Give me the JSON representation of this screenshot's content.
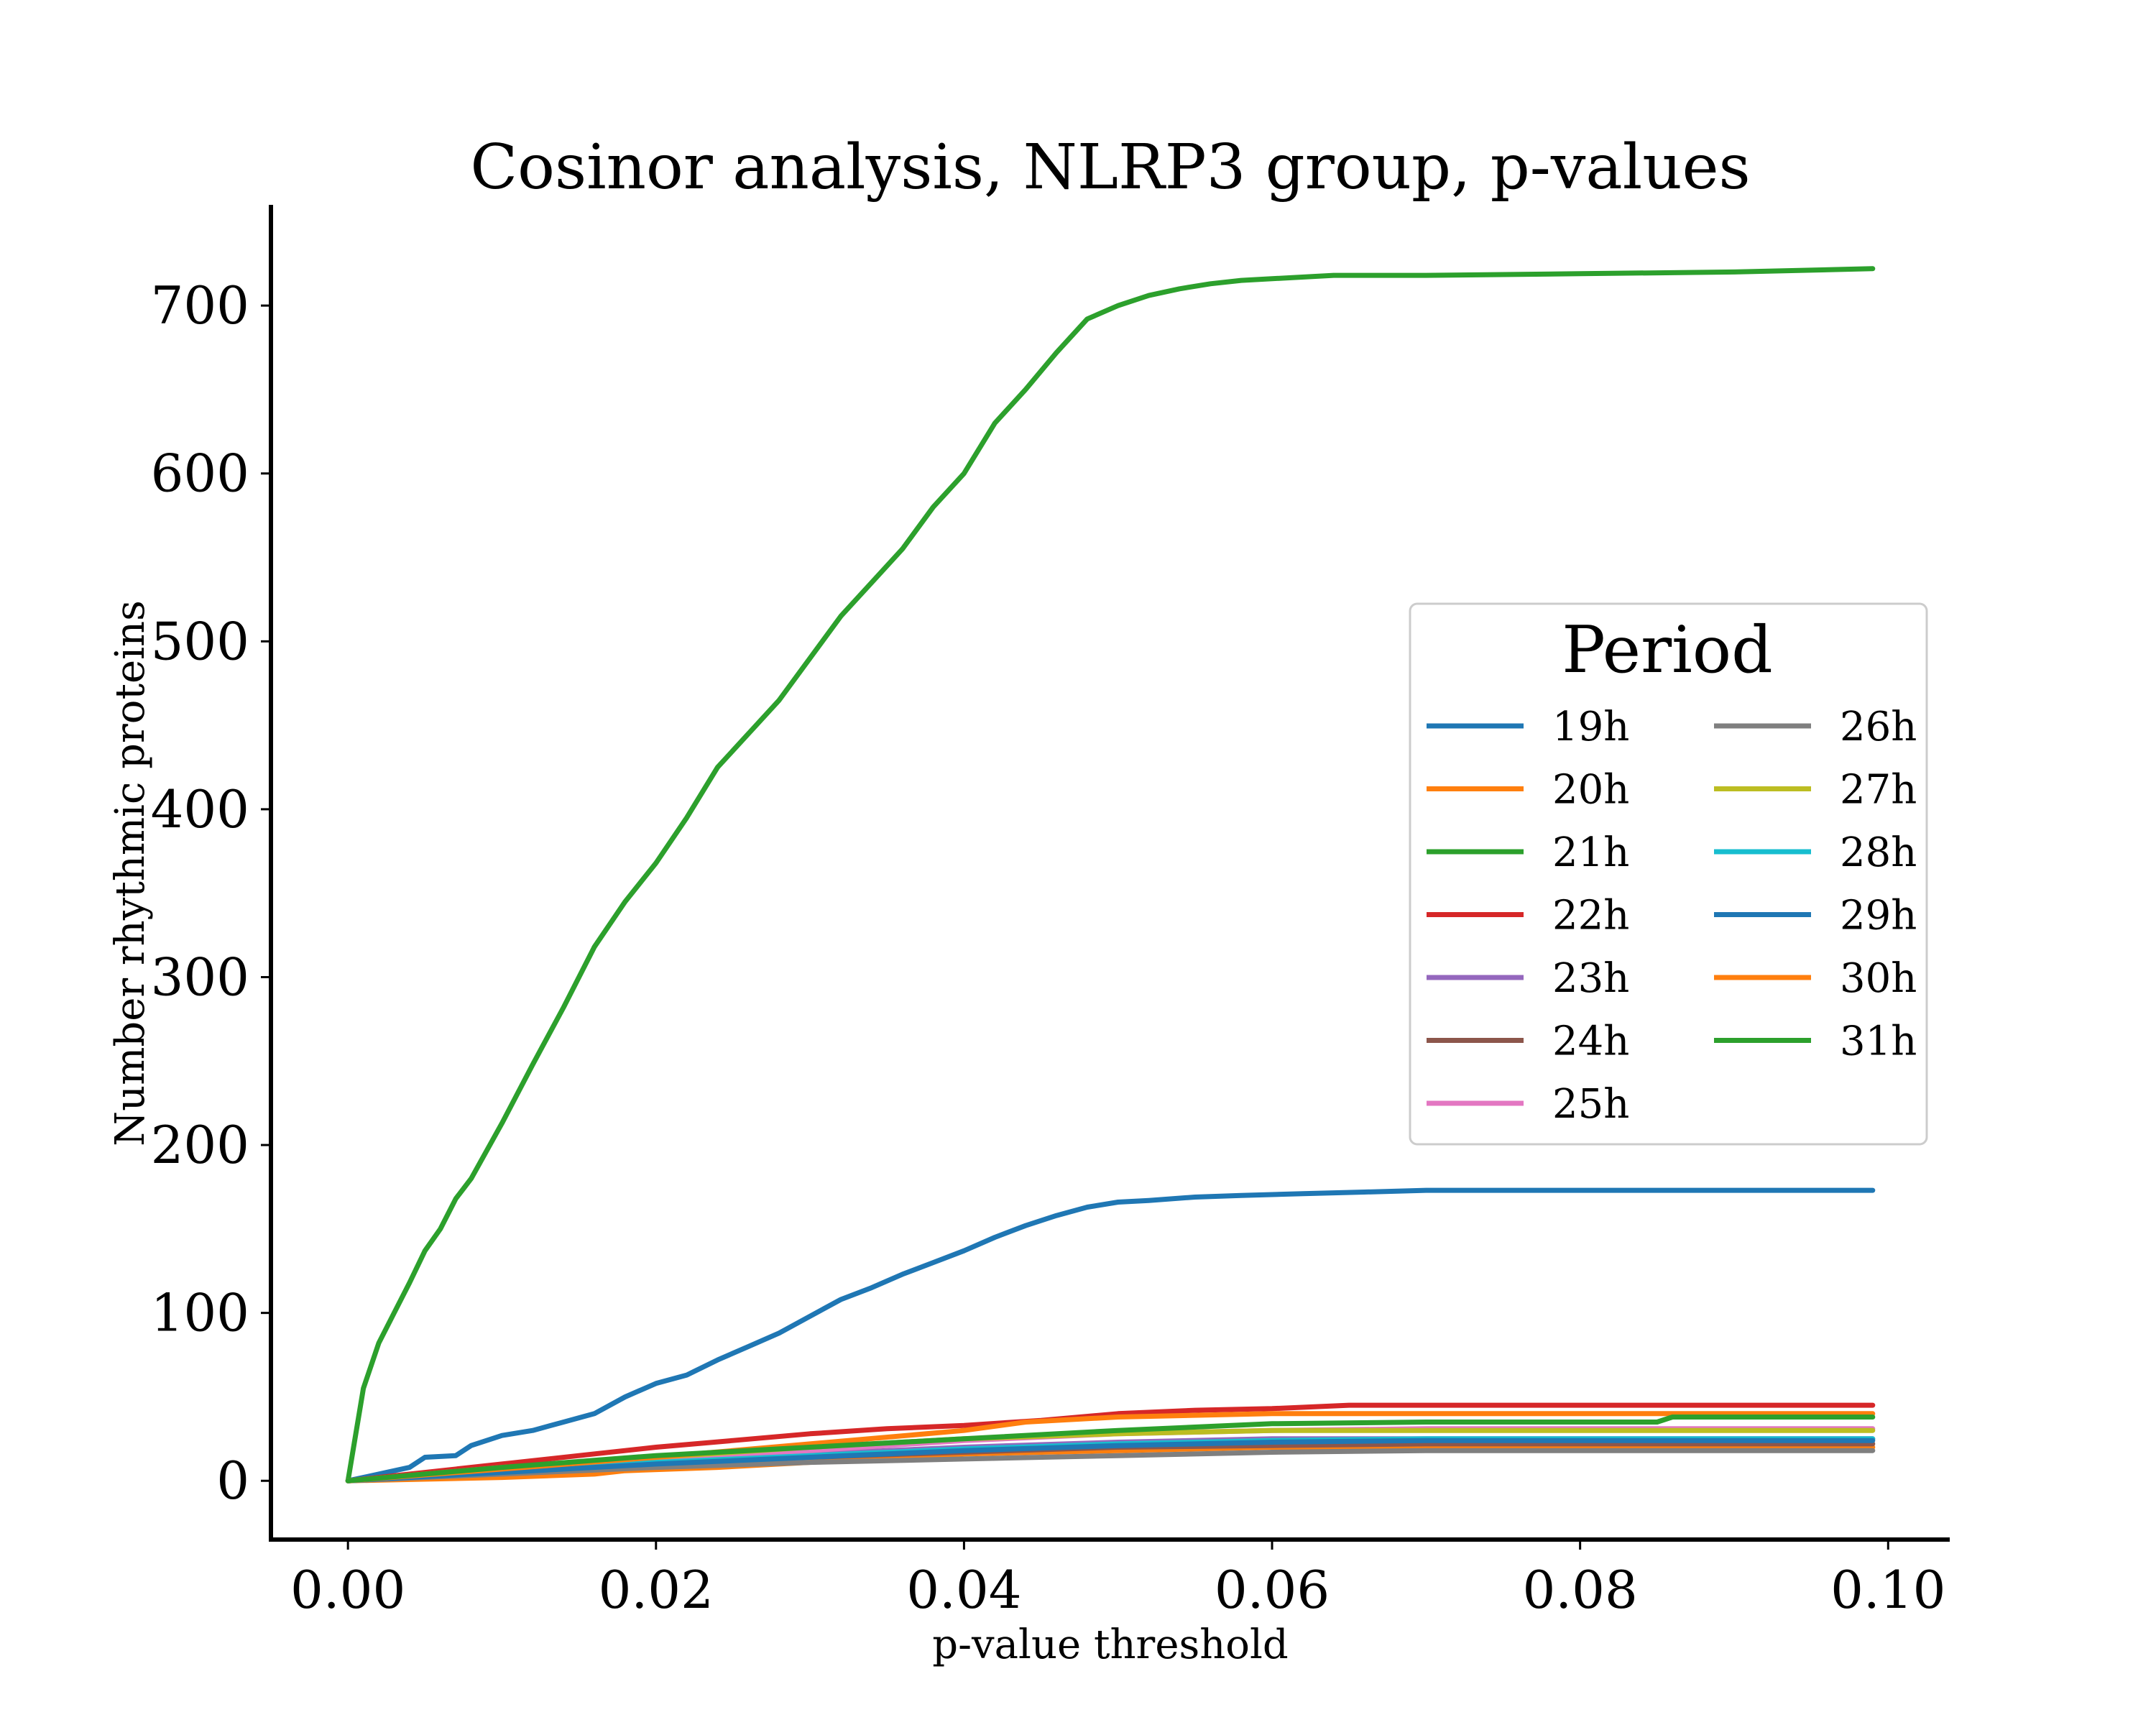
{
  "chart_data": {
    "type": "line",
    "title": "Cosinor analysis, NLRP3 group, p-values",
    "xlabel": "p-value threshold",
    "ylabel": "Number rhythmic proteins",
    "xlim": [
      -0.005,
      0.104
    ],
    "ylim": [
      -35,
      760
    ],
    "xticks": [
      0.0,
      0.02,
      0.04,
      0.06,
      0.08,
      0.1
    ],
    "xtick_labels": [
      "0.00",
      "0.02",
      "0.04",
      "0.06",
      "0.08",
      "0.10"
    ],
    "yticks": [
      0,
      100,
      200,
      300,
      400,
      500,
      600,
      700
    ],
    "ytick_labels": [
      "0",
      "100",
      "200",
      "300",
      "400",
      "500",
      "600",
      "700"
    ],
    "grid": false,
    "legend": {
      "title": "Period",
      "placement": "center-right",
      "columns": 2
    },
    "series": [
      {
        "name": "19h",
        "color": "#1f77b4",
        "x": [
          0,
          0.002,
          0.004,
          0.005,
          0.007,
          0.008,
          0.01,
          0.012,
          0.014,
          0.016,
          0.018,
          0.02,
          0.022,
          0.024,
          0.026,
          0.028,
          0.03,
          0.032,
          0.034,
          0.036,
          0.038,
          0.04,
          0.042,
          0.044,
          0.046,
          0.048,
          0.05,
          0.052,
          0.055,
          0.058,
          0.062,
          0.066,
          0.07,
          0.08,
          0.09,
          0.099
        ],
        "y": [
          0,
          4,
          8,
          14,
          15,
          21,
          27,
          30,
          35,
          40,
          50,
          58,
          63,
          72,
          80,
          88,
          98,
          108,
          115,
          123,
          130,
          137,
          145,
          152,
          158,
          163,
          166,
          167,
          169,
          170,
          171,
          172,
          173,
          173,
          173,
          173
        ]
      },
      {
        "name": "20h",
        "color": "#ff7f0e",
        "x": [
          0,
          0.01,
          0.016,
          0.018,
          0.024,
          0.028,
          0.036,
          0.04,
          0.05,
          0.06,
          0.07,
          0.08,
          0.09,
          0.099
        ],
        "y": [
          0,
          2,
          4,
          6,
          8,
          10,
          14,
          16,
          18,
          20,
          20,
          20,
          20,
          20
        ]
      },
      {
        "name": "21h",
        "color": "#2ca02c",
        "x": [
          0,
          0.001,
          0.002,
          0.003,
          0.004,
          0.005,
          0.006,
          0.007,
          0.008,
          0.01,
          0.012,
          0.014,
          0.016,
          0.018,
          0.02,
          0.022,
          0.024,
          0.026,
          0.028,
          0.03,
          0.032,
          0.034,
          0.036,
          0.038,
          0.04,
          0.042,
          0.044,
          0.046,
          0.048,
          0.05,
          0.052,
          0.054,
          0.056,
          0.058,
          0.06,
          0.064,
          0.07,
          0.08,
          0.09,
          0.099
        ],
        "y": [
          0,
          55,
          82,
          100,
          118,
          137,
          150,
          168,
          180,
          213,
          248,
          282,
          318,
          345,
          368,
          395,
          425,
          445,
          465,
          490,
          515,
          535,
          555,
          580,
          600,
          630,
          650,
          672,
          692,
          700,
          706,
          710,
          713,
          715,
          716,
          718,
          718,
          719,
          720,
          722
        ]
      },
      {
        "name": "22h",
        "color": "#d62728",
        "x": [
          0,
          0.005,
          0.01,
          0.015,
          0.02,
          0.025,
          0.03,
          0.035,
          0.04,
          0.045,
          0.05,
          0.055,
          0.06,
          0.065,
          0.07,
          0.08,
          0.09,
          0.099
        ],
        "y": [
          0,
          5,
          10,
          15,
          20,
          24,
          28,
          31,
          33,
          36,
          40,
          42,
          43,
          45,
          45,
          45,
          45,
          45
        ]
      },
      {
        "name": "23h",
        "color": "#9467bd",
        "x": [
          0,
          0.01,
          0.02,
          0.03,
          0.04,
          0.05,
          0.06,
          0.07,
          0.08,
          0.099
        ],
        "y": [
          0,
          6,
          12,
          16,
          20,
          23,
          25,
          25,
          25,
          25
        ]
      },
      {
        "name": "24h",
        "color": "#8c564b",
        "x": [
          0,
          0.01,
          0.02,
          0.03,
          0.04,
          0.05,
          0.06,
          0.07,
          0.08,
          0.099
        ],
        "y": [
          0,
          5,
          10,
          14,
          17,
          20,
          21,
          22,
          22,
          22
        ]
      },
      {
        "name": "25h",
        "color": "#e377c2",
        "x": [
          0,
          0.01,
          0.02,
          0.03,
          0.04,
          0.05,
          0.06,
          0.07,
          0.08,
          0.099
        ],
        "y": [
          0,
          7,
          13,
          18,
          24,
          28,
          30,
          31,
          31,
          31
        ]
      },
      {
        "name": "26h",
        "color": "#7f7f7f",
        "x": [
          0,
          0.01,
          0.02,
          0.03,
          0.04,
          0.05,
          0.06,
          0.07,
          0.08,
          0.099
        ],
        "y": [
          0,
          4,
          8,
          11,
          13,
          15,
          17,
          18,
          18,
          18
        ]
      },
      {
        "name": "27h",
        "color": "#bcbd22",
        "x": [
          0,
          0.01,
          0.02,
          0.03,
          0.04,
          0.05,
          0.06,
          0.07,
          0.08,
          0.099
        ],
        "y": [
          0,
          8,
          14,
          20,
          25,
          28,
          30,
          30,
          30,
          30
        ]
      },
      {
        "name": "28h",
        "color": "#17becf",
        "x": [
          0,
          0.01,
          0.02,
          0.03,
          0.04,
          0.05,
          0.06,
          0.07,
          0.08,
          0.099
        ],
        "y": [
          0,
          6,
          11,
          15,
          19,
          22,
          24,
          25,
          25,
          25
        ]
      },
      {
        "name": "29h",
        "color": "#1f77b4",
        "x": [
          0,
          0.01,
          0.02,
          0.03,
          0.04,
          0.05,
          0.06,
          0.07,
          0.08,
          0.099
        ],
        "y": [
          0,
          5,
          10,
          14,
          18,
          21,
          23,
          24,
          24,
          24
        ]
      },
      {
        "name": "30h",
        "color": "#ff7f0e",
        "x": [
          0,
          0.01,
          0.02,
          0.03,
          0.04,
          0.044,
          0.05,
          0.06,
          0.07,
          0.08,
          0.099
        ],
        "y": [
          0,
          7,
          14,
          22,
          30,
          35,
          38,
          40,
          40,
          40,
          40
        ]
      },
      {
        "name": "31h",
        "color": "#2ca02c",
        "x": [
          0,
          0.01,
          0.02,
          0.03,
          0.04,
          0.05,
          0.06,
          0.07,
          0.085,
          0.086,
          0.099
        ],
        "y": [
          0,
          8,
          15,
          20,
          25,
          30,
          34,
          35,
          35,
          38,
          38
        ]
      }
    ]
  }
}
